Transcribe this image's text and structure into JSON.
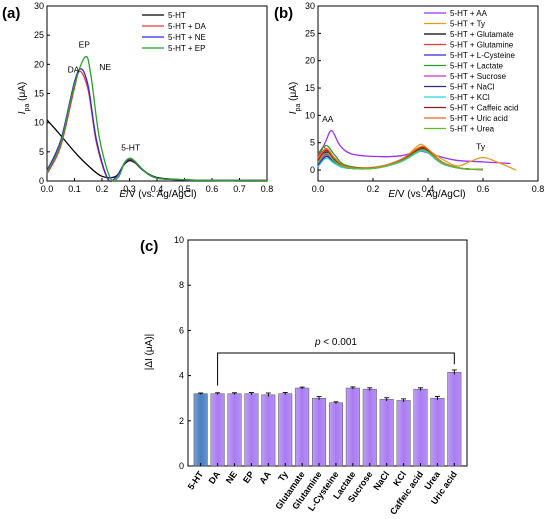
{
  "chart_data": [
    {
      "panel": "(a)",
      "type": "line",
      "xlabel_parts": [
        "E",
        "/V (vs. Ag/AgCl)"
      ],
      "ylabel_parts": [
        "I",
        "pa",
        " (μA)"
      ],
      "xlim": [
        0.0,
        0.8
      ],
      "ylim": [
        0,
        30
      ],
      "xticks": [
        0.0,
        0.1,
        0.2,
        0.3,
        0.4,
        0.5,
        0.6,
        0.7,
        0.8
      ],
      "yticks": [
        0,
        5,
        10,
        15,
        20,
        25,
        30
      ],
      "legend_position": "top-right",
      "series": [
        {
          "name": "5-HT",
          "color": "#000000",
          "x": [
            0.0,
            0.05,
            0.1,
            0.15,
            0.2,
            0.25,
            0.28,
            0.3,
            0.32,
            0.35,
            0.4,
            0.5,
            0.6,
            0.7,
            0.8
          ],
          "y": [
            10.5,
            7.8,
            5.0,
            2.6,
            0.8,
            0.8,
            2.8,
            3.5,
            3.1,
            1.8,
            0.6,
            0.2,
            0.1,
            0.1,
            0.1
          ]
        },
        {
          "name": "5-HT + DA",
          "color": "#e8383d",
          "x": [
            0.0,
            0.05,
            0.1,
            0.12,
            0.15,
            0.18,
            0.22,
            0.25,
            0.28,
            0.3,
            0.32,
            0.35,
            0.4,
            0.5,
            0.6,
            0.7,
            0.8
          ],
          "y": [
            1.2,
            6.0,
            16.0,
            18.8,
            15.5,
            6.5,
            0.4,
            0.6,
            2.9,
            3.7,
            3.2,
            1.8,
            0.5,
            0.2,
            0.1,
            0.1,
            0.1
          ]
        },
        {
          "name": "5-HT + NE",
          "color": "#2b2bd9",
          "x": [
            0.0,
            0.05,
            0.1,
            0.125,
            0.15,
            0.18,
            0.22,
            0.25,
            0.28,
            0.3,
            0.32,
            0.35,
            0.4,
            0.5,
            0.6,
            0.7,
            0.8
          ],
          "y": [
            1.8,
            7.0,
            17.0,
            19.2,
            16.2,
            7.0,
            0.5,
            0.6,
            2.9,
            3.8,
            3.3,
            1.8,
            0.5,
            0.2,
            0.1,
            0.1,
            0.1
          ]
        },
        {
          "name": "5-HT + EP",
          "color": "#27a127",
          "x": [
            0.0,
            0.05,
            0.1,
            0.14,
            0.16,
            0.19,
            0.23,
            0.26,
            0.28,
            0.3,
            0.32,
            0.35,
            0.4,
            0.5,
            0.6,
            0.7,
            0.8
          ],
          "y": [
            1.5,
            6.5,
            16.5,
            21.3,
            18.0,
            7.5,
            0.5,
            0.7,
            3.0,
            3.9,
            3.4,
            1.9,
            0.5,
            0.2,
            0.1,
            0.1,
            0.1
          ]
        }
      ],
      "annotations": [
        {
          "text": "DA",
          "x": 0.075,
          "y": 18.6
        },
        {
          "text": "EP",
          "x": 0.115,
          "y": 22.9
        },
        {
          "text": "NE",
          "x": 0.19,
          "y": 19.0
        },
        {
          "text": "5-HT",
          "x": 0.27,
          "y": 5.2
        }
      ]
    },
    {
      "panel": "(b)",
      "type": "line",
      "xlabel_parts": [
        "E",
        "/V (vs. Ag/AgCl)"
      ],
      "ylabel_parts": [
        "I",
        "pa",
        " (μA)"
      ],
      "xlim": [
        0.0,
        0.8
      ],
      "ylim": [
        -2,
        30
      ],
      "xticks": [
        0.0,
        0.2,
        0.4,
        0.6,
        0.8
      ],
      "yticks": [
        0,
        5,
        10,
        15,
        20,
        25,
        30
      ],
      "legend_position": "top-right",
      "series": [
        {
          "name": "5-HT + AA",
          "color": "#9b30ff",
          "x": [
            0.0,
            0.03,
            0.05,
            0.08,
            0.12,
            0.2,
            0.3,
            0.35,
            0.38,
            0.42,
            0.5,
            0.6,
            0.7
          ],
          "y": [
            2.0,
            5.5,
            7.2,
            4.5,
            3.0,
            2.5,
            2.6,
            3.3,
            3.4,
            2.8,
            1.8,
            1.5,
            1.2
          ]
        },
        {
          "name": "5-HT + Ty",
          "color": "#e69a1c",
          "x": [
            0.0,
            0.03,
            0.06,
            0.1,
            0.2,
            0.3,
            0.36,
            0.38,
            0.42,
            0.5,
            0.55,
            0.6,
            0.65,
            0.72
          ],
          "y": [
            0.5,
            3.0,
            1.8,
            0.6,
            0.5,
            1.8,
            4.3,
            4.6,
            3.0,
            0.8,
            1.5,
            2.3,
            1.5,
            0.0
          ]
        },
        {
          "name": "5-HT + Glutamate",
          "color": "#000000",
          "x": [
            0.0,
            0.03,
            0.06,
            0.1,
            0.2,
            0.3,
            0.37,
            0.4,
            0.45,
            0.52,
            0.6
          ],
          "y": [
            1.0,
            3.3,
            1.5,
            0.5,
            0.4,
            1.8,
            4.0,
            3.7,
            1.5,
            0.3,
            0.1
          ]
        },
        {
          "name": "5-HT + Glutamine",
          "color": "#e8383d",
          "x": [
            0.0,
            0.02,
            0.05,
            0.1,
            0.2,
            0.3,
            0.37,
            0.4,
            0.45,
            0.52,
            0.6
          ],
          "y": [
            2.5,
            4.2,
            2.5,
            0.8,
            0.4,
            1.8,
            3.9,
            3.6,
            1.5,
            0.3,
            0.1
          ]
        },
        {
          "name": "5-HT + L-Cysteine",
          "color": "#2b2bd9",
          "x": [
            0.0,
            0.03,
            0.06,
            0.1,
            0.2,
            0.3,
            0.37,
            0.4,
            0.45,
            0.52,
            0.6
          ],
          "y": [
            1.5,
            3.0,
            1.7,
            0.6,
            0.4,
            1.7,
            3.7,
            3.4,
            1.4,
            0.3,
            0.1
          ]
        },
        {
          "name": "5-HT + Lactate",
          "color": "#27a127",
          "x": [
            0.0,
            0.03,
            0.06,
            0.1,
            0.2,
            0.3,
            0.37,
            0.4,
            0.45,
            0.52,
            0.6
          ],
          "y": [
            3.0,
            4.5,
            2.8,
            0.9,
            0.4,
            1.8,
            3.8,
            3.5,
            1.4,
            0.3,
            0.1
          ]
        },
        {
          "name": "5-HT + Sucrose",
          "color": "#d62fd6",
          "x": [
            0.0,
            0.03,
            0.06,
            0.1,
            0.2,
            0.3,
            0.37,
            0.4,
            0.45,
            0.52,
            0.6
          ],
          "y": [
            1.2,
            2.8,
            1.5,
            0.5,
            0.3,
            1.6,
            3.6,
            3.3,
            1.3,
            0.3,
            0.1
          ]
        },
        {
          "name": "5-HT + NaCl",
          "color": "#2a2a8f",
          "x": [
            0.0,
            0.03,
            0.06,
            0.1,
            0.2,
            0.3,
            0.37,
            0.4,
            0.45,
            0.52,
            0.6
          ],
          "y": [
            0.8,
            2.5,
            1.3,
            0.4,
            0.3,
            1.5,
            3.5,
            3.2,
            1.2,
            0.3,
            0.1
          ]
        },
        {
          "name": "5-HT + KCl",
          "color": "#22d3e6",
          "x": [
            0.0,
            0.03,
            0.06,
            0.1,
            0.2,
            0.3,
            0.37,
            0.4,
            0.45,
            0.52,
            0.6
          ],
          "y": [
            0.6,
            2.2,
            1.2,
            0.4,
            0.3,
            1.5,
            3.4,
            3.1,
            1.2,
            0.3,
            0.1
          ]
        },
        {
          "name": "5-HT + Caffeic acid",
          "color": "#8b1f1f",
          "x": [
            0.0,
            0.03,
            0.06,
            0.1,
            0.2,
            0.3,
            0.37,
            0.4,
            0.45,
            0.52,
            0.6
          ],
          "y": [
            1.8,
            3.6,
            2.0,
            0.7,
            0.4,
            1.7,
            3.8,
            3.5,
            1.4,
            0.3,
            0.1
          ]
        },
        {
          "name": "5-HT + Uric acid",
          "color": "#f0641e",
          "x": [
            0.0,
            0.03,
            0.06,
            0.1,
            0.2,
            0.3,
            0.37,
            0.4,
            0.45,
            0.52,
            0.6
          ],
          "y": [
            2.2,
            3.9,
            2.2,
            0.7,
            0.4,
            1.9,
            4.2,
            3.8,
            1.5,
            0.3,
            0.1
          ]
        },
        {
          "name": "5-HT + Urea",
          "color": "#5fbf2a",
          "x": [
            0.0,
            0.03,
            0.06,
            0.1,
            0.2,
            0.3,
            0.37,
            0.4,
            0.45,
            0.52,
            0.6
          ],
          "y": [
            1.4,
            3.1,
            1.6,
            0.5,
            0.3,
            1.6,
            3.6,
            3.3,
            1.3,
            0.3,
            0.1
          ]
        }
      ],
      "annotations": [
        {
          "text": "AA",
          "x": 0.015,
          "y": 8.8
        },
        {
          "text": "Ty",
          "x": 0.575,
          "y": 3.8
        }
      ]
    },
    {
      "panel": "(c)",
      "type": "bar",
      "ylabel": "|ΔI (μA)|",
      "ylim": [
        0,
        10
      ],
      "yticks": [
        0,
        2,
        4,
        6,
        8,
        10
      ],
      "categories": [
        "5-HT",
        "DA",
        "NE",
        "EP",
        "AA",
        "Ty",
        "Glutamate",
        "Glutamine",
        "L-Cysteine",
        "Lactate",
        "Sucrose",
        "NaCl",
        "KCl",
        "Caffeic acid",
        "Urea",
        "Uric acid"
      ],
      "values": [
        3.2,
        3.2,
        3.2,
        3.2,
        3.15,
        3.2,
        3.45,
        3.0,
        2.8,
        3.45,
        3.4,
        2.95,
        2.9,
        3.4,
        3.0,
        4.15
      ],
      "errors": [
        0.03,
        0.04,
        0.04,
        0.05,
        0.08,
        0.05,
        0.04,
        0.07,
        0.04,
        0.05,
        0.06,
        0.07,
        0.07,
        0.06,
        0.08,
        0.1
      ],
      "colors": {
        "reference": "#4a7fc1",
        "interferent": "#a97cf2"
      },
      "annotation_parts": [
        "p",
        " < 0.001"
      ]
    }
  ]
}
